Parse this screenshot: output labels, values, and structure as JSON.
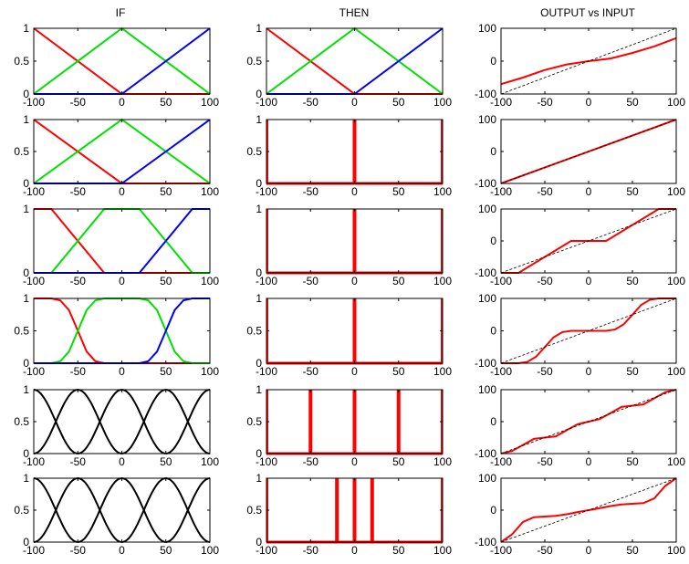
{
  "column_titles": [
    "IF",
    "THEN",
    "OUTPUT vs INPUT"
  ],
  "colors": {
    "red": "#ff0000",
    "green": "#00e000",
    "blue": "#0000ff",
    "black": "#000000",
    "dashed": "#000000"
  },
  "chart_data": [
    {
      "type": "line",
      "title": "IF",
      "row": 1,
      "col": 1,
      "xlim": [
        -100,
        100
      ],
      "ylim": [
        0,
        1
      ],
      "xticks": [
        "-100",
        "-50",
        "0",
        "50",
        "100"
      ],
      "yticks": [
        "0",
        "0.5",
        "1"
      ],
      "series": [
        {
          "color": "red",
          "x": [
            -100,
            0,
            100
          ],
          "y": [
            1,
            0,
            0
          ]
        },
        {
          "color": "green",
          "x": [
            -100,
            0,
            100
          ],
          "y": [
            0,
            1,
            0
          ]
        },
        {
          "color": "blue",
          "x": [
            -100,
            0,
            100
          ],
          "y": [
            0,
            0,
            1
          ]
        }
      ]
    },
    {
      "type": "line",
      "title": "THEN",
      "row": 1,
      "col": 2,
      "xlim": [
        -100,
        100
      ],
      "ylim": [
        0,
        1
      ],
      "xticks": [
        "-100",
        "-50",
        "0",
        "50",
        "100"
      ],
      "yticks": [
        "0",
        "0.5",
        "1"
      ],
      "series": [
        {
          "color": "red",
          "x": [
            -100,
            0,
            100
          ],
          "y": [
            1,
            0,
            0
          ]
        },
        {
          "color": "green",
          "x": [
            -100,
            0,
            100
          ],
          "y": [
            0,
            1,
            0
          ]
        },
        {
          "color": "blue",
          "x": [
            -100,
            0,
            100
          ],
          "y": [
            0,
            0,
            1
          ]
        }
      ]
    },
    {
      "type": "line",
      "title": "OUTPUT vs INPUT",
      "row": 1,
      "col": 3,
      "xlim": [
        -100,
        100
      ],
      "ylim": [
        -100,
        100
      ],
      "xticks": [
        "-100",
        "-50",
        "0",
        "50",
        "100"
      ],
      "yticks": [
        "-100",
        "0",
        "100"
      ],
      "series": [
        {
          "color": "red",
          "x": [
            -100,
            -75,
            -50,
            -25,
            0,
            25,
            50,
            75,
            100
          ],
          "y": [
            -70,
            -50,
            -27,
            -10,
            0,
            8,
            25,
            45,
            70
          ]
        },
        {
          "color": "dashed",
          "dashed": true,
          "x": [
            -100,
            100
          ],
          "y": [
            -100,
            100
          ]
        }
      ]
    },
    {
      "type": "line",
      "row": 2,
      "col": 1,
      "xlim": [
        -100,
        100
      ],
      "ylim": [
        0,
        1
      ],
      "xticks": [
        "-100",
        "-50",
        "0",
        "50",
        "100"
      ],
      "yticks": [
        "0",
        "0.5",
        "1"
      ],
      "series": [
        {
          "color": "red",
          "x": [
            -100,
            0,
            100
          ],
          "y": [
            1,
            0,
            0
          ]
        },
        {
          "color": "green",
          "x": [
            -100,
            0,
            100
          ],
          "y": [
            0,
            1,
            0
          ]
        },
        {
          "color": "blue",
          "x": [
            -100,
            0,
            100
          ],
          "y": [
            0,
            0,
            1
          ]
        }
      ]
    },
    {
      "type": "bar",
      "row": 2,
      "col": 2,
      "xlim": [
        -100,
        100
      ],
      "ylim": [
        0,
        1
      ],
      "xticks": [
        "-100",
        "-50",
        "0",
        "50",
        "100"
      ],
      "yticks": [
        "0",
        "0.5",
        "1"
      ],
      "bars": [
        -100,
        0,
        100
      ]
    },
    {
      "type": "line",
      "row": 2,
      "col": 3,
      "xlim": [
        -100,
        100
      ],
      "ylim": [
        -100,
        100
      ],
      "xticks": [
        "-100",
        "-50",
        "0",
        "50",
        "100"
      ],
      "yticks": [
        "-100",
        "0",
        "100"
      ],
      "series": [
        {
          "color": "red",
          "x": [
            -100,
            100
          ],
          "y": [
            -100,
            100
          ]
        },
        {
          "color": "dashed",
          "dashed": true,
          "x": [
            -100,
            100
          ],
          "y": [
            -100,
            100
          ]
        }
      ]
    },
    {
      "type": "line",
      "row": 3,
      "col": 1,
      "xlim": [
        -100,
        100
      ],
      "ylim": [
        0,
        1
      ],
      "xticks": [
        "-100",
        "-50",
        "0",
        "50",
        "100"
      ],
      "yticks": [
        "0",
        "1"
      ],
      "series": [
        {
          "color": "red",
          "x": [
            -100,
            -80,
            -20,
            100
          ],
          "y": [
            1,
            1,
            0,
            0
          ]
        },
        {
          "color": "green",
          "x": [
            -100,
            -80,
            -20,
            20,
            80,
            100
          ],
          "y": [
            0,
            0,
            1,
            1,
            0,
            0
          ]
        },
        {
          "color": "blue",
          "x": [
            -100,
            20,
            80,
            100
          ],
          "y": [
            0,
            0,
            1,
            1
          ]
        }
      ]
    },
    {
      "type": "bar",
      "row": 3,
      "col": 2,
      "xlim": [
        -100,
        100
      ],
      "ylim": [
        0,
        1
      ],
      "xticks": [
        "-100",
        "-50",
        "0",
        "50",
        "100"
      ],
      "yticks": [
        "0",
        "1"
      ],
      "bars": [
        -100,
        0,
        100
      ]
    },
    {
      "type": "line",
      "row": 3,
      "col": 3,
      "xlim": [
        -100,
        100
      ],
      "ylim": [
        -100,
        100
      ],
      "xticks": [
        "-100",
        "-50",
        "0",
        "50",
        "100"
      ],
      "yticks": [
        "-100",
        "0",
        "100"
      ],
      "series": [
        {
          "color": "red",
          "x": [
            -100,
            -80,
            -20,
            20,
            80,
            100
          ],
          "y": [
            -100,
            -100,
            0,
            0,
            100,
            100
          ]
        },
        {
          "color": "dashed",
          "dashed": true,
          "x": [
            -100,
            100
          ],
          "y": [
            -100,
            100
          ]
        }
      ]
    },
    {
      "type": "line",
      "row": 4,
      "col": 1,
      "xlim": [
        -100,
        100
      ],
      "ylim": [
        0,
        1
      ],
      "xticks": [
        "-100",
        "-50",
        "0",
        "50",
        "100"
      ],
      "yticks": [
        "0",
        "0.5",
        "1"
      ],
      "series": [
        {
          "color": "red",
          "x": [
            -100,
            -80,
            -70,
            -60,
            -50,
            -40,
            -30,
            -20,
            100
          ],
          "y": [
            1,
            1,
            0.97,
            0.82,
            0.5,
            0.18,
            0.03,
            0,
            0
          ]
        },
        {
          "color": "green",
          "x": [
            -100,
            -80,
            -70,
            -60,
            -50,
            -40,
            -30,
            -20,
            20,
            30,
            40,
            50,
            60,
            70,
            80,
            100
          ],
          "y": [
            0,
            0,
            0.03,
            0.18,
            0.5,
            0.82,
            0.97,
            1,
            1,
            0.97,
            0.82,
            0.5,
            0.18,
            0.03,
            0,
            0
          ]
        },
        {
          "color": "blue",
          "x": [
            -100,
            20,
            30,
            40,
            50,
            60,
            70,
            80,
            100
          ],
          "y": [
            0,
            0,
            0.03,
            0.18,
            0.5,
            0.82,
            0.97,
            1,
            1
          ]
        }
      ]
    },
    {
      "type": "bar",
      "row": 4,
      "col": 2,
      "xlim": [
        -100,
        100
      ],
      "ylim": [
        0,
        1
      ],
      "xticks": [
        "-100",
        "-50",
        "0",
        "50",
        "100"
      ],
      "yticks": [
        "0",
        "0.5",
        "1"
      ],
      "bars": [
        -100,
        0,
        100
      ]
    },
    {
      "type": "line",
      "row": 4,
      "col": 3,
      "xlim": [
        -100,
        100
      ],
      "ylim": [
        -100,
        100
      ],
      "xticks": [
        "-100",
        "-50",
        "0",
        "50",
        "100"
      ],
      "yticks": [
        "-100",
        "0",
        "100"
      ],
      "series": [
        {
          "color": "red",
          "x": [
            -100,
            -80,
            -70,
            -60,
            -50,
            -40,
            -30,
            -20,
            20,
            30,
            40,
            50,
            60,
            70,
            80,
            100
          ],
          "y": [
            -100,
            -100,
            -96,
            -80,
            -50,
            -20,
            -4,
            0,
            0,
            4,
            20,
            50,
            80,
            96,
            100,
            100
          ]
        },
        {
          "color": "dashed",
          "dashed": true,
          "x": [
            -100,
            100
          ],
          "y": [
            -100,
            100
          ]
        }
      ]
    },
    {
      "type": "line",
      "row": 5,
      "col": 1,
      "xlim": [
        -100,
        100
      ],
      "ylim": [
        0,
        1
      ],
      "xticks": [
        "-100",
        "-50",
        "0",
        "50",
        "100"
      ],
      "yticks": [
        "0",
        "0.5",
        "1"
      ],
      "series": [
        {
          "color": "black",
          "fn": "cos",
          "centers": [
            -100,
            -50,
            0,
            50,
            100
          ],
          "width": 50
        }
      ]
    },
    {
      "type": "bar",
      "row": 5,
      "col": 2,
      "xlim": [
        -100,
        100
      ],
      "ylim": [
        0,
        1
      ],
      "xticks": [
        "-100",
        "-50",
        "0",
        "50",
        "100"
      ],
      "yticks": [
        "0",
        "0.5",
        "1"
      ],
      "bars": [
        -100,
        -50,
        0,
        50,
        100
      ]
    },
    {
      "type": "line",
      "row": 5,
      "col": 3,
      "xlim": [
        -100,
        100
      ],
      "ylim": [
        -100,
        100
      ],
      "xticks": [
        "-100",
        "-50",
        "0",
        "50",
        "100"
      ],
      "yticks": [
        "-100",
        "0",
        "100"
      ],
      "series": [
        {
          "color": "red",
          "x": [
            -100,
            -87.5,
            -75,
            -62.5,
            -50,
            -37.5,
            -25,
            -12.5,
            0,
            12.5,
            25,
            37.5,
            50,
            62.5,
            75,
            87.5,
            100
          ],
          "y": [
            -100,
            -92,
            -73,
            -54,
            -50,
            -46,
            -27,
            -8,
            0,
            8,
            27,
            46,
            50,
            54,
            73,
            92,
            100
          ]
        },
        {
          "color": "dashed",
          "dashed": true,
          "x": [
            -100,
            100
          ],
          "y": [
            -100,
            100
          ]
        }
      ]
    },
    {
      "type": "line",
      "row": 6,
      "col": 1,
      "xlim": [
        -100,
        100
      ],
      "ylim": [
        0,
        1
      ],
      "xticks": [
        "-100",
        "-50",
        "0",
        "50",
        "100"
      ],
      "yticks": [
        "0",
        "0.5",
        "1"
      ],
      "series": [
        {
          "color": "black",
          "fn": "cos",
          "centers": [
            -100,
            -50,
            0,
            50,
            100
          ],
          "width": 50
        }
      ]
    },
    {
      "type": "bar",
      "row": 6,
      "col": 2,
      "xlim": [
        -100,
        100
      ],
      "ylim": [
        0,
        1
      ],
      "xticks": [
        "-100",
        "-50",
        "0",
        "50",
        "100"
      ],
      "yticks": [
        "0",
        "0.5",
        "1"
      ],
      "bars": [
        -100,
        -20,
        0,
        20,
        100
      ]
    },
    {
      "type": "line",
      "row": 6,
      "col": 3,
      "xlim": [
        -100,
        100
      ],
      "ylim": [
        -100,
        100
      ],
      "xticks": [
        "-100",
        "-50",
        "0",
        "50",
        "100"
      ],
      "yticks": [
        "-100",
        "0",
        "100"
      ],
      "series": [
        {
          "color": "red",
          "x": [
            -100,
            -87.5,
            -75,
            -62.5,
            -50,
            -37.5,
            -25,
            -12.5,
            0,
            12.5,
            25,
            37.5,
            50,
            62.5,
            75,
            87.5,
            100
          ],
          "y": [
            -100,
            -76,
            -37,
            -22,
            -20,
            -18,
            -13,
            -6,
            0,
            6,
            13,
            18,
            20,
            22,
            37,
            76,
            100
          ]
        },
        {
          "color": "dashed",
          "dashed": true,
          "x": [
            -100,
            100
          ],
          "y": [
            -100,
            100
          ]
        }
      ]
    }
  ]
}
